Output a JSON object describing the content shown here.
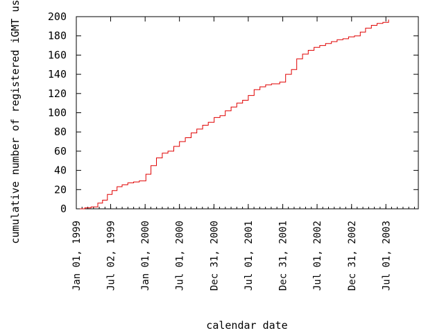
{
  "chart_data": {
    "type": "line",
    "title": "",
    "xlabel": "calendar date",
    "ylabel": "cumulative number of registered iGMT users",
    "x_scale": "date",
    "xlim": [
      "1999-01-01",
      "2003-12-20"
    ],
    "ylim": [
      0,
      200
    ],
    "y_ticks": [
      0,
      20,
      40,
      60,
      80,
      100,
      120,
      140,
      160,
      180,
      200
    ],
    "x_ticks": [
      {
        "date": "1999-01-01",
        "label": "Jan 01, 1999"
      },
      {
        "date": "1999-07-02",
        "label": "Jul 02, 1999"
      },
      {
        "date": "2000-01-01",
        "label": "Jan 01, 2000"
      },
      {
        "date": "2000-07-01",
        "label": "Jul 01, 2000"
      },
      {
        "date": "2000-12-31",
        "label": "Dec 31, 2000"
      },
      {
        "date": "2001-07-01",
        "label": "Jul 01, 2001"
      },
      {
        "date": "2001-12-31",
        "label": "Dec 31, 2001"
      },
      {
        "date": "2002-07-01",
        "label": "Jul 01, 2002"
      },
      {
        "date": "2002-12-31",
        "label": "Dec 31, 2002"
      },
      {
        "date": "2003-07-01",
        "label": "Jul 01, 2003"
      }
    ],
    "grid": false,
    "colors": {
      "series": "#e00000",
      "axes": "#000000"
    },
    "series": [
      {
        "name": "",
        "x": [
          "1999-01-20",
          "1999-02-15",
          "1999-03-20",
          "1999-04-25",
          "1999-05-20",
          "1999-06-15",
          "1999-07-10",
          "1999-08-05",
          "1999-09-01",
          "1999-10-01",
          "1999-11-01",
          "1999-12-01",
          "2000-01-05",
          "2000-02-01",
          "2000-03-01",
          "2000-04-01",
          "2000-05-01",
          "2000-06-01",
          "2000-07-01",
          "2000-08-01",
          "2000-09-01",
          "2000-10-01",
          "2000-11-01",
          "2000-12-01",
          "2001-01-01",
          "2001-02-01",
          "2001-03-01",
          "2001-04-01",
          "2001-05-01",
          "2001-06-01",
          "2001-07-01",
          "2001-08-01",
          "2001-09-01",
          "2001-10-01",
          "2001-11-01",
          "2001-12-15",
          "2002-01-15",
          "2002-02-15",
          "2002-03-15",
          "2002-04-15",
          "2002-05-15",
          "2002-06-15",
          "2002-07-15",
          "2002-08-15",
          "2002-09-15",
          "2002-10-15",
          "2002-11-15",
          "2002-12-15",
          "2003-01-15",
          "2003-02-15",
          "2003-03-15",
          "2003-04-15",
          "2003-05-15",
          "2003-06-15",
          "2003-07-15"
        ],
        "values": [
          0,
          1,
          2,
          6,
          9,
          15,
          19,
          23,
          25,
          27,
          28,
          29,
          36,
          45,
          53,
          58,
          60,
          65,
          70,
          74,
          79,
          83,
          87,
          90,
          95,
          97,
          102,
          106,
          110,
          113,
          118,
          124,
          127,
          129,
          130,
          132,
          140,
          145,
          156,
          161,
          165,
          168,
          170,
          172,
          174,
          176,
          177,
          179,
          180,
          184,
          188,
          191,
          193,
          194,
          197
        ]
      }
    ]
  }
}
